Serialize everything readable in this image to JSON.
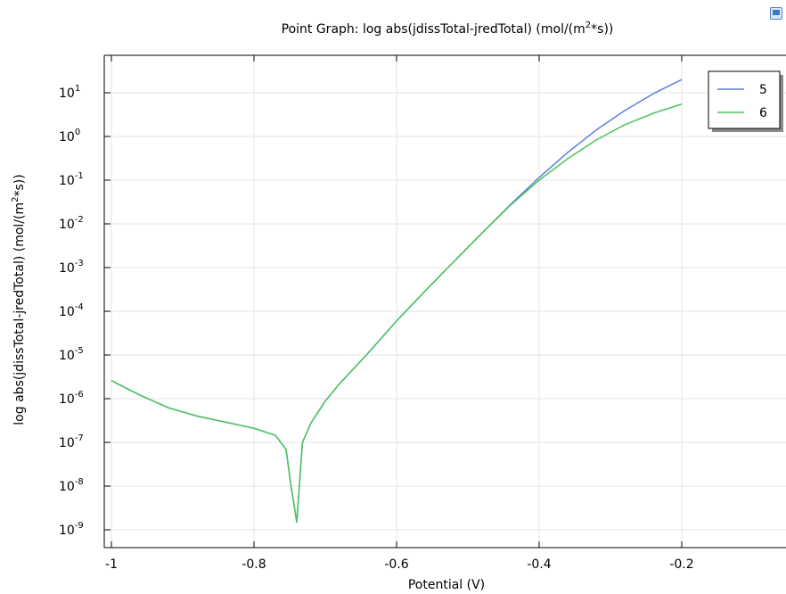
{
  "chart_data": {
    "type": "line",
    "title": "Point Graph: log abs(jdissTotal-jredTotal) (mol/(m",
    "title_sup": "2",
    "title_tail": "*s))",
    "xlabel": "Potential (V)",
    "ylabel": "log abs(jdissTotal-jredTotal) (mol/(m",
    "ylabel_sup": "2",
    "ylabel_tail": "*s))",
    "x_scale": "linear",
    "y_scale": "log",
    "xlim": [
      -1.0,
      -0.125
    ],
    "ylim_log10": [
      -9.25,
      1.8
    ],
    "x_ticks": [
      {
        "value": -1.0,
        "label": "-1"
      },
      {
        "value": -0.8,
        "label": "-0.8"
      },
      {
        "value": -0.6,
        "label": "-0.6"
      },
      {
        "value": -0.4,
        "label": "-0.4"
      },
      {
        "value": -0.2,
        "label": "-0.2"
      }
    ],
    "y_ticks": [
      {
        "exp": 1,
        "label": "10",
        "sup": "1"
      },
      {
        "exp": 0,
        "label": "10",
        "sup": "0"
      },
      {
        "exp": -1,
        "label": "10",
        "sup": "-1"
      },
      {
        "exp": -2,
        "label": "10",
        "sup": "-2"
      },
      {
        "exp": -3,
        "label": "10",
        "sup": "-3"
      },
      {
        "exp": -4,
        "label": "10",
        "sup": "-4"
      },
      {
        "exp": -5,
        "label": "10",
        "sup": "-5"
      },
      {
        "exp": -6,
        "label": "10",
        "sup": "-6"
      },
      {
        "exp": -7,
        "label": "10",
        "sup": "-7"
      },
      {
        "exp": -8,
        "label": "10",
        "sup": "-8"
      },
      {
        "exp": -9,
        "label": "10",
        "sup": "-9"
      }
    ],
    "grid": true,
    "legend_position": "top-right",
    "series": [
      {
        "name": "5",
        "color": "#5b7fe0",
        "x": [
          -1.0,
          -0.96,
          -0.92,
          -0.88,
          -0.84,
          -0.8,
          -0.77,
          -0.755,
          -0.748,
          -0.74,
          -0.732,
          -0.72,
          -0.7,
          -0.68,
          -0.64,
          -0.6,
          -0.56,
          -0.52,
          -0.48,
          -0.44,
          -0.4,
          -0.36,
          -0.32,
          -0.28,
          -0.24,
          -0.2
        ],
        "y": [
          2.6e-06,
          1.2e-06,
          6.2e-07,
          4e-07,
          2.9e-07,
          2.1e-07,
          1.45e-07,
          6.9e-08,
          1e-08,
          1.5e-09,
          1e-07,
          2.8e-07,
          8.8e-07,
          2.2e-06,
          1.1e-05,
          6e-05,
          0.00029,
          0.00135,
          0.0062,
          0.028,
          0.115,
          0.43,
          1.4,
          3.9,
          9.5,
          20.0
        ]
      },
      {
        "name": "6",
        "color": "#4cc35a",
        "x": [
          -1.0,
          -0.96,
          -0.92,
          -0.88,
          -0.84,
          -0.8,
          -0.77,
          -0.755,
          -0.748,
          -0.74,
          -0.732,
          -0.72,
          -0.7,
          -0.68,
          -0.64,
          -0.6,
          -0.56,
          -0.52,
          -0.48,
          -0.44,
          -0.4,
          -0.36,
          -0.32,
          -0.28,
          -0.24,
          -0.2
        ],
        "y": [
          2.6e-06,
          1.2e-06,
          6.2e-07,
          4e-07,
          2.9e-07,
          2.1e-07,
          1.45e-07,
          6.9e-08,
          1e-08,
          1.5e-09,
          1e-07,
          2.8e-07,
          8.8e-07,
          2.2e-06,
          1.1e-05,
          6e-05,
          0.00029,
          0.00135,
          0.0062,
          0.027,
          0.1,
          0.31,
          0.83,
          1.85,
          3.4,
          5.5
        ]
      }
    ]
  }
}
